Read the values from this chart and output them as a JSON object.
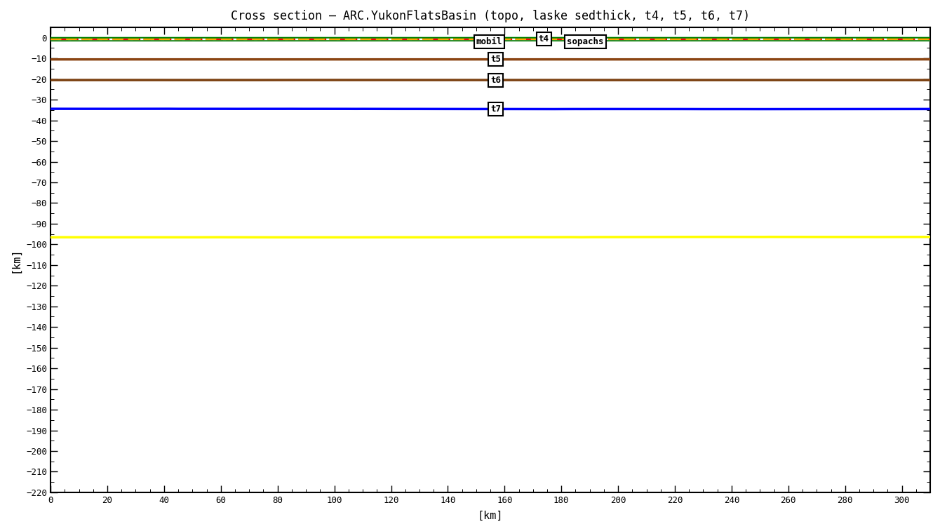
{
  "title": "Cross section – ARC.YukonFlatsBasin (topo, laske sedthick, t4, t5, t6, t7)",
  "xlabel": "[km]",
  "ylabel": "[km]",
  "xlim": [
    0,
    310
  ],
  "ylim": [
    -220,
    5
  ],
  "xticks": [
    0,
    20,
    40,
    60,
    80,
    100,
    120,
    140,
    160,
    180,
    200,
    220,
    240,
    260,
    280,
    300
  ],
  "yticks": [
    0,
    -10,
    -20,
    -30,
    -40,
    -50,
    -60,
    -70,
    -80,
    -90,
    -100,
    -110,
    -120,
    -130,
    -140,
    -150,
    -160,
    -170,
    -180,
    -190,
    -200,
    -210,
    -220
  ],
  "bg_color": "#ffffff",
  "y_topo": 0.0,
  "y_orange": -0.5,
  "y_red": -0.8,
  "y_t4": -1.5,
  "y_t5": -10.5,
  "y_t6": -20.5,
  "y_t7": -34.5,
  "y_yellow": -96.5,
  "ann_x": 155,
  "ann_y_top": -2.0,
  "ann_y_t5": -10.5,
  "ann_y_t6": -20.5,
  "ann_y_t7": -34.5,
  "topo_color": "#008000",
  "orange_color": "#FFA500",
  "red_color": "#FF0000",
  "t4_color": "#228B22",
  "t5_color": "#8B4513",
  "t6_color": "#7B4010",
  "t7_color": "#0000FF",
  "yellow_color": "#FFFF00",
  "figwidth": 13.4,
  "figheight": 7.57,
  "dpi": 100
}
